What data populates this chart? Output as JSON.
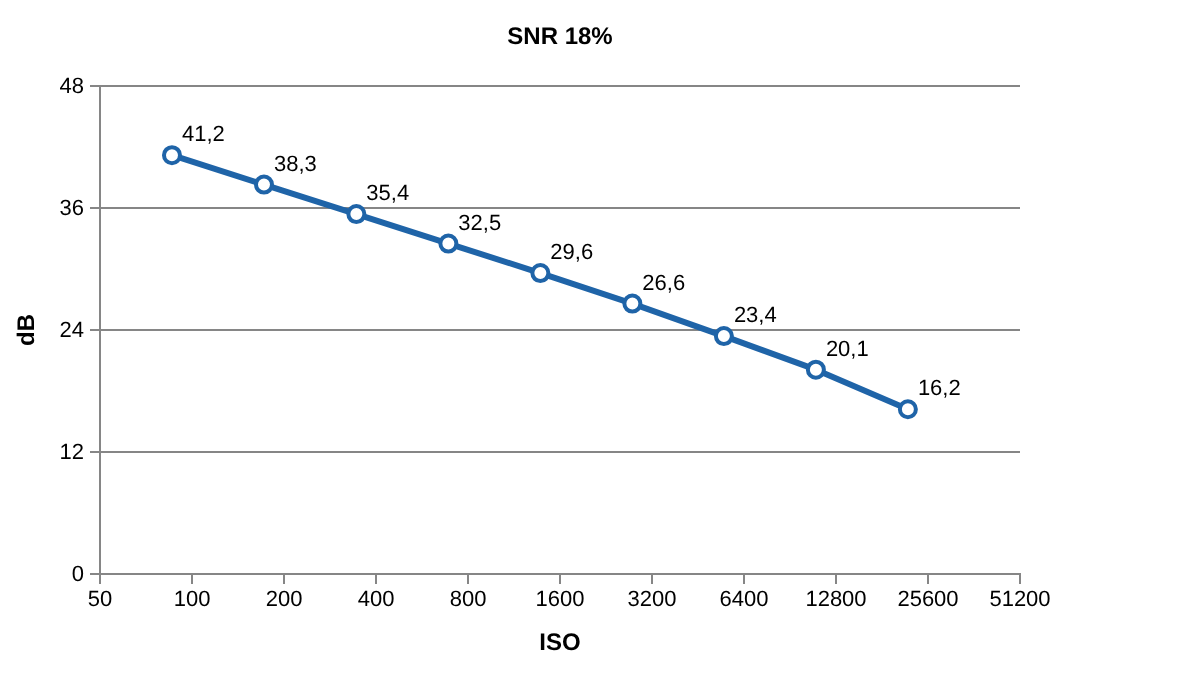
{
  "chart_data": {
    "type": "line",
    "title": "SNR 18%",
    "xlabel": "ISO",
    "ylabel": "dB",
    "log": "x",
    "xlim": [
      50,
      51200
    ],
    "xticks": [
      50,
      100,
      200,
      400,
      800,
      1600,
      3200,
      6400,
      12800,
      25600,
      51200
    ],
    "ylim": [
      0,
      48
    ],
    "yticks": [
      0,
      12,
      24,
      36,
      48
    ],
    "grid": "y",
    "marker": "circle",
    "line_style": "solid",
    "series": [
      {
        "color": "#1f64a8",
        "x": [
          86,
          172,
          345,
          690,
          1380,
          2760,
          5500,
          11000,
          22000
        ],
        "values": [
          41.2,
          38.3,
          35.4,
          32.5,
          29.6,
          26.6,
          23.4,
          20.1,
          16.2
        ],
        "value_labels": [
          "41,2",
          "38,3",
          "35,4",
          "32,5",
          "29,6",
          "26,6",
          "23,4",
          "20,1",
          "16,2"
        ]
      }
    ]
  }
}
